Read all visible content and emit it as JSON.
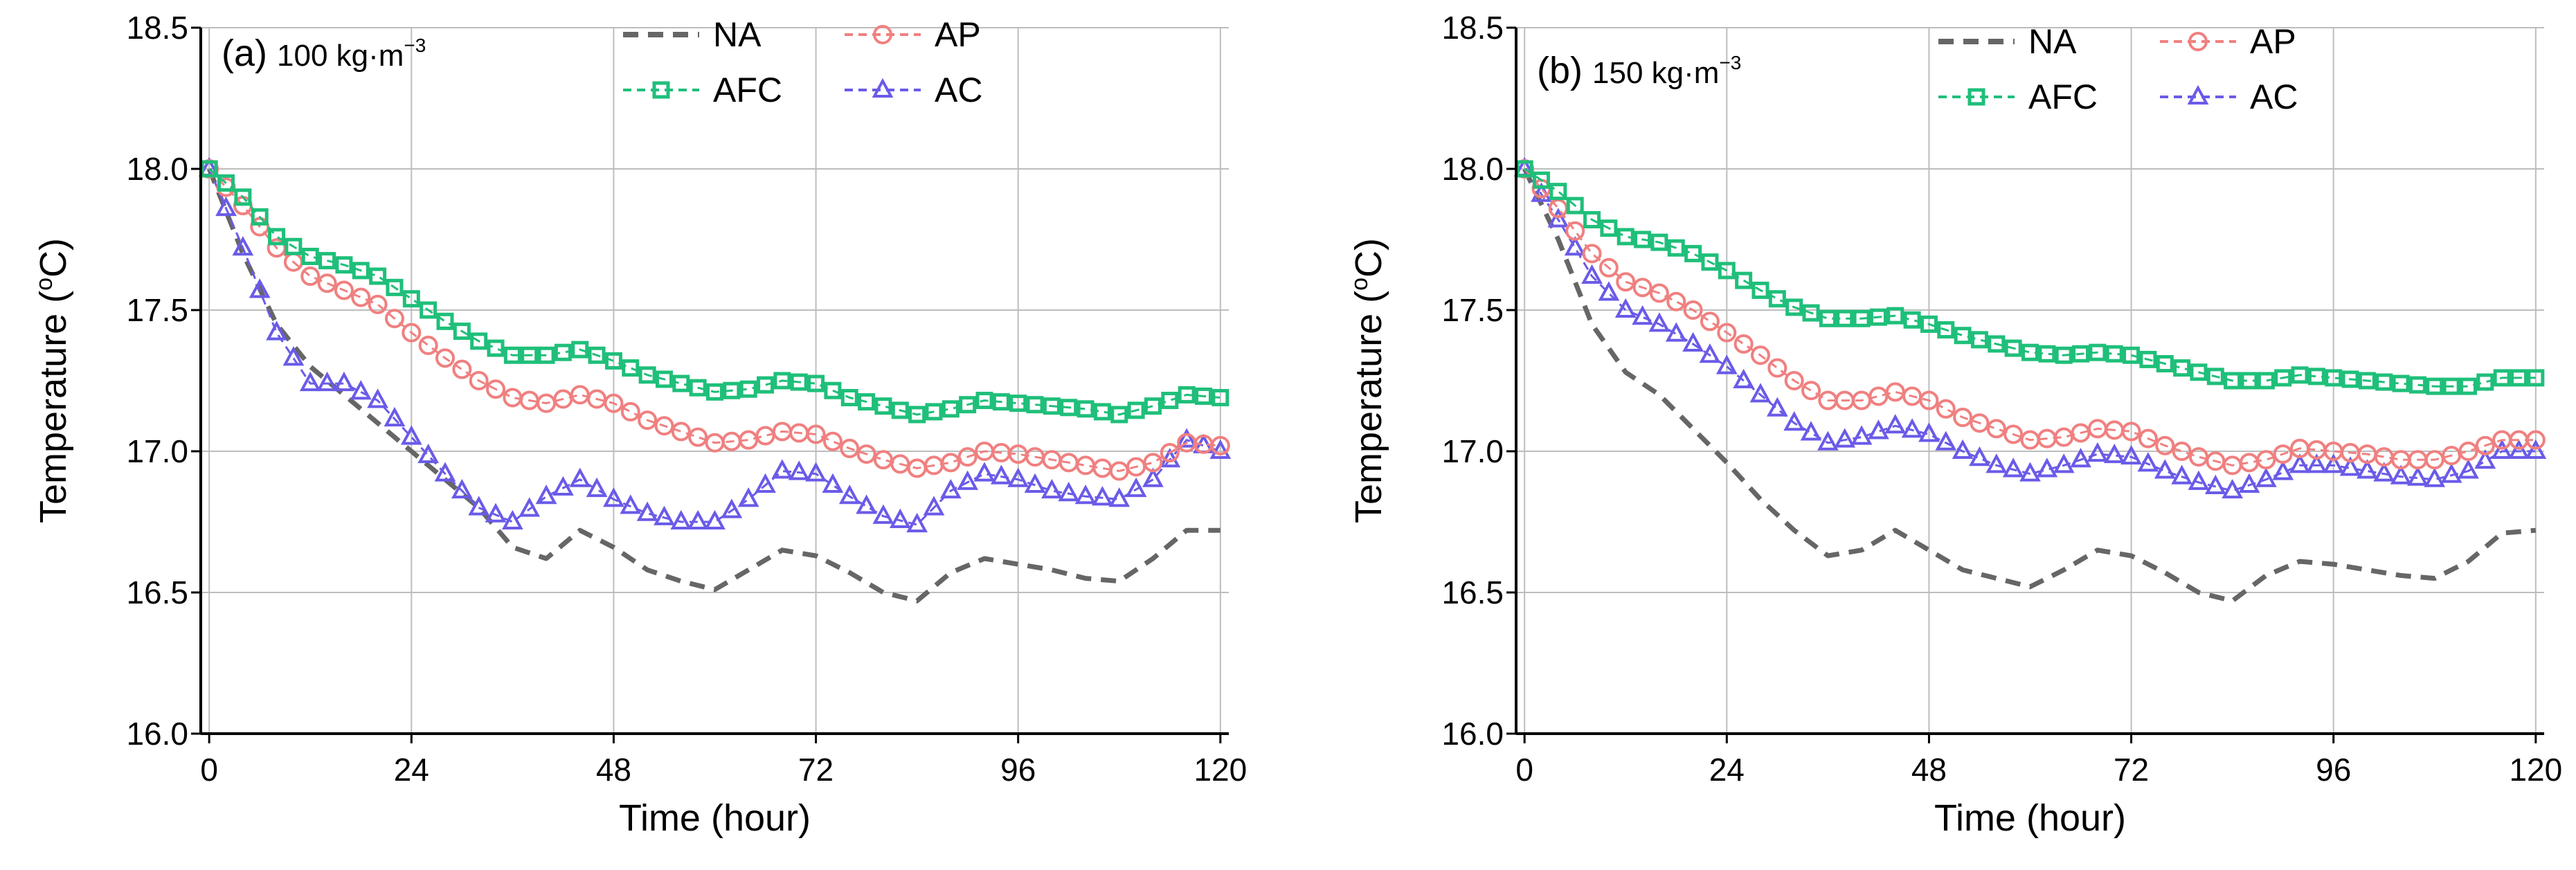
{
  "figure": {
    "colors": {
      "NA": "#666666",
      "AP": "#f08080",
      "AFC": "#1fbf7a",
      "AC": "#6a5be8",
      "grid": "#bdbdbd",
      "axis": "#000000"
    },
    "icons": {
      "NA": "dashed-line-icon",
      "AP": "circle-marker-icon",
      "AFC": "square-marker-icon",
      "AC": "triangle-marker-icon"
    }
  },
  "chart_data": [
    {
      "type": "line",
      "panel_label": "(a)",
      "density_label": "100 kg·m",
      "density_exponent": "−3",
      "xlabel": "Time (hour)",
      "ylabel": "Temperature (",
      "ylabel_sup": "o",
      "ylabel_end": "C)",
      "xlim": [
        -1,
        121
      ],
      "ylim": [
        16.0,
        18.5
      ],
      "xticks": [
        0,
        24,
        48,
        72,
        96,
        120
      ],
      "yticks": [
        16.0,
        16.5,
        17.0,
        17.5,
        18.0,
        18.5
      ],
      "ytick_labels": [
        "16.0",
        "16.5",
        "17.0",
        "17.5",
        "18.0",
        "18.5"
      ],
      "legend": [
        "NA",
        "AP",
        "AFC",
        "AC"
      ],
      "series": [
        {
          "name": "NA",
          "x": [
            0,
            4,
            8,
            12,
            16,
            20,
            24,
            28,
            32,
            36,
            40,
            44,
            48,
            52,
            56,
            60,
            64,
            68,
            72,
            76,
            80,
            84,
            88,
            92,
            96,
            100,
            104,
            108,
            112,
            116,
            120
          ],
          "values": [
            18.0,
            17.7,
            17.45,
            17.3,
            17.2,
            17.1,
            17.0,
            16.9,
            16.8,
            16.66,
            16.62,
            16.72,
            16.66,
            16.58,
            16.54,
            16.51,
            16.58,
            16.65,
            16.63,
            16.57,
            16.5,
            16.47,
            16.57,
            16.62,
            16.6,
            16.58,
            16.55,
            16.54,
            16.62,
            16.72,
            16.72
          ]
        },
        {
          "name": "AP",
          "x": [
            0,
            4,
            8,
            12,
            16,
            20,
            24,
            28,
            32,
            36,
            40,
            44,
            48,
            52,
            56,
            60,
            64,
            68,
            72,
            76,
            80,
            84,
            88,
            92,
            96,
            100,
            104,
            108,
            112,
            116,
            120
          ],
          "values": [
            18.0,
            17.87,
            17.72,
            17.62,
            17.57,
            17.52,
            17.42,
            17.33,
            17.25,
            17.19,
            17.17,
            17.2,
            17.17,
            17.11,
            17.07,
            17.03,
            17.04,
            17.07,
            17.06,
            17.01,
            16.97,
            16.94,
            16.96,
            17.0,
            16.99,
            16.97,
            16.95,
            16.93,
            16.96,
            17.03,
            17.02
          ]
        },
        {
          "name": "AFC",
          "x": [
            0,
            4,
            8,
            12,
            16,
            20,
            24,
            28,
            32,
            36,
            40,
            44,
            48,
            52,
            56,
            60,
            64,
            68,
            72,
            76,
            80,
            84,
            88,
            92,
            96,
            100,
            104,
            108,
            112,
            116,
            120
          ],
          "values": [
            18.0,
            17.9,
            17.76,
            17.69,
            17.66,
            17.62,
            17.54,
            17.46,
            17.39,
            17.34,
            17.34,
            17.36,
            17.32,
            17.27,
            17.24,
            17.21,
            17.22,
            17.25,
            17.24,
            17.19,
            17.16,
            17.13,
            17.15,
            17.18,
            17.17,
            17.16,
            17.15,
            17.13,
            17.16,
            17.2,
            17.19
          ]
        },
        {
          "name": "AC",
          "x": [
            0,
            4,
            8,
            12,
            16,
            20,
            24,
            28,
            32,
            36,
            40,
            44,
            48,
            52,
            56,
            60,
            64,
            68,
            72,
            76,
            80,
            84,
            88,
            92,
            96,
            100,
            104,
            108,
            112,
            116,
            120
          ],
          "values": [
            18.0,
            17.72,
            17.42,
            17.24,
            17.24,
            17.18,
            17.05,
            16.92,
            16.8,
            16.75,
            16.84,
            16.9,
            16.83,
            16.78,
            16.75,
            16.75,
            16.83,
            16.93,
            16.92,
            16.84,
            16.77,
            16.74,
            16.86,
            16.92,
            16.9,
            16.86,
            16.84,
            16.83,
            16.9,
            17.04,
            17.0
          ]
        }
      ]
    },
    {
      "type": "line",
      "panel_label": "(b)",
      "density_label": "150 kg·m",
      "density_exponent": "−3",
      "xlabel": "Time (hour)",
      "ylabel": "Temperature (",
      "ylabel_sup": "o",
      "ylabel_end": "C)",
      "xlim": [
        -1,
        121
      ],
      "ylim": [
        16.0,
        18.5
      ],
      "xticks": [
        0,
        24,
        48,
        72,
        96,
        120
      ],
      "yticks": [
        16.0,
        16.5,
        17.0,
        17.5,
        18.0,
        18.5
      ],
      "ytick_labels": [
        "16.0",
        "16.5",
        "17.0",
        "17.5",
        "18.0",
        "18.5"
      ],
      "legend": [
        "NA",
        "AP",
        "AFC",
        "AC"
      ],
      "series": [
        {
          "name": "NA",
          "x": [
            0,
            4,
            8,
            12,
            16,
            20,
            24,
            28,
            32,
            36,
            40,
            44,
            48,
            52,
            56,
            60,
            64,
            68,
            72,
            76,
            80,
            84,
            88,
            92,
            96,
            100,
            104,
            108,
            112,
            116,
            120
          ],
          "values": [
            18.0,
            17.75,
            17.45,
            17.28,
            17.2,
            17.08,
            16.96,
            16.83,
            16.72,
            16.63,
            16.65,
            16.72,
            16.65,
            16.58,
            16.55,
            16.52,
            16.58,
            16.65,
            16.63,
            16.57,
            16.5,
            16.47,
            16.56,
            16.61,
            16.6,
            16.58,
            16.56,
            16.55,
            16.61,
            16.71,
            16.72
          ]
        },
        {
          "name": "AP",
          "x": [
            0,
            4,
            8,
            12,
            16,
            20,
            24,
            28,
            32,
            36,
            40,
            44,
            48,
            52,
            56,
            60,
            64,
            68,
            72,
            76,
            80,
            84,
            88,
            92,
            96,
            100,
            104,
            108,
            112,
            116,
            120
          ],
          "values": [
            18.0,
            17.86,
            17.7,
            17.6,
            17.56,
            17.5,
            17.42,
            17.34,
            17.25,
            17.18,
            17.18,
            17.21,
            17.18,
            17.12,
            17.08,
            17.04,
            17.05,
            17.08,
            17.07,
            17.02,
            16.98,
            16.95,
            16.97,
            17.01,
            17.0,
            16.99,
            16.97,
            16.97,
            17.0,
            17.04,
            17.04
          ]
        },
        {
          "name": "AFC",
          "x": [
            0,
            4,
            8,
            12,
            16,
            20,
            24,
            28,
            32,
            36,
            40,
            44,
            48,
            52,
            56,
            60,
            64,
            68,
            72,
            76,
            80,
            84,
            88,
            92,
            96,
            100,
            104,
            108,
            112,
            116,
            120
          ],
          "values": [
            18.0,
            17.92,
            17.82,
            17.76,
            17.74,
            17.7,
            17.64,
            17.57,
            17.51,
            17.47,
            17.47,
            17.48,
            17.45,
            17.41,
            17.38,
            17.35,
            17.34,
            17.35,
            17.34,
            17.31,
            17.28,
            17.25,
            17.25,
            17.27,
            17.26,
            17.25,
            17.24,
            17.23,
            17.23,
            17.26,
            17.26
          ]
        },
        {
          "name": "AC",
          "x": [
            0,
            4,
            8,
            12,
            16,
            20,
            24,
            28,
            32,
            36,
            40,
            44,
            48,
            52,
            56,
            60,
            64,
            68,
            72,
            76,
            80,
            84,
            88,
            92,
            96,
            100,
            104,
            108,
            112,
            116,
            120
          ],
          "values": [
            18.0,
            17.82,
            17.62,
            17.5,
            17.45,
            17.38,
            17.3,
            17.2,
            17.1,
            17.03,
            17.05,
            17.09,
            17.06,
            17.0,
            16.95,
            16.92,
            16.95,
            16.99,
            16.98,
            16.93,
            16.89,
            16.86,
            16.9,
            16.95,
            16.95,
            16.93,
            16.91,
            16.9,
            16.93,
            17.0,
            17.0
          ]
        }
      ]
    }
  ]
}
